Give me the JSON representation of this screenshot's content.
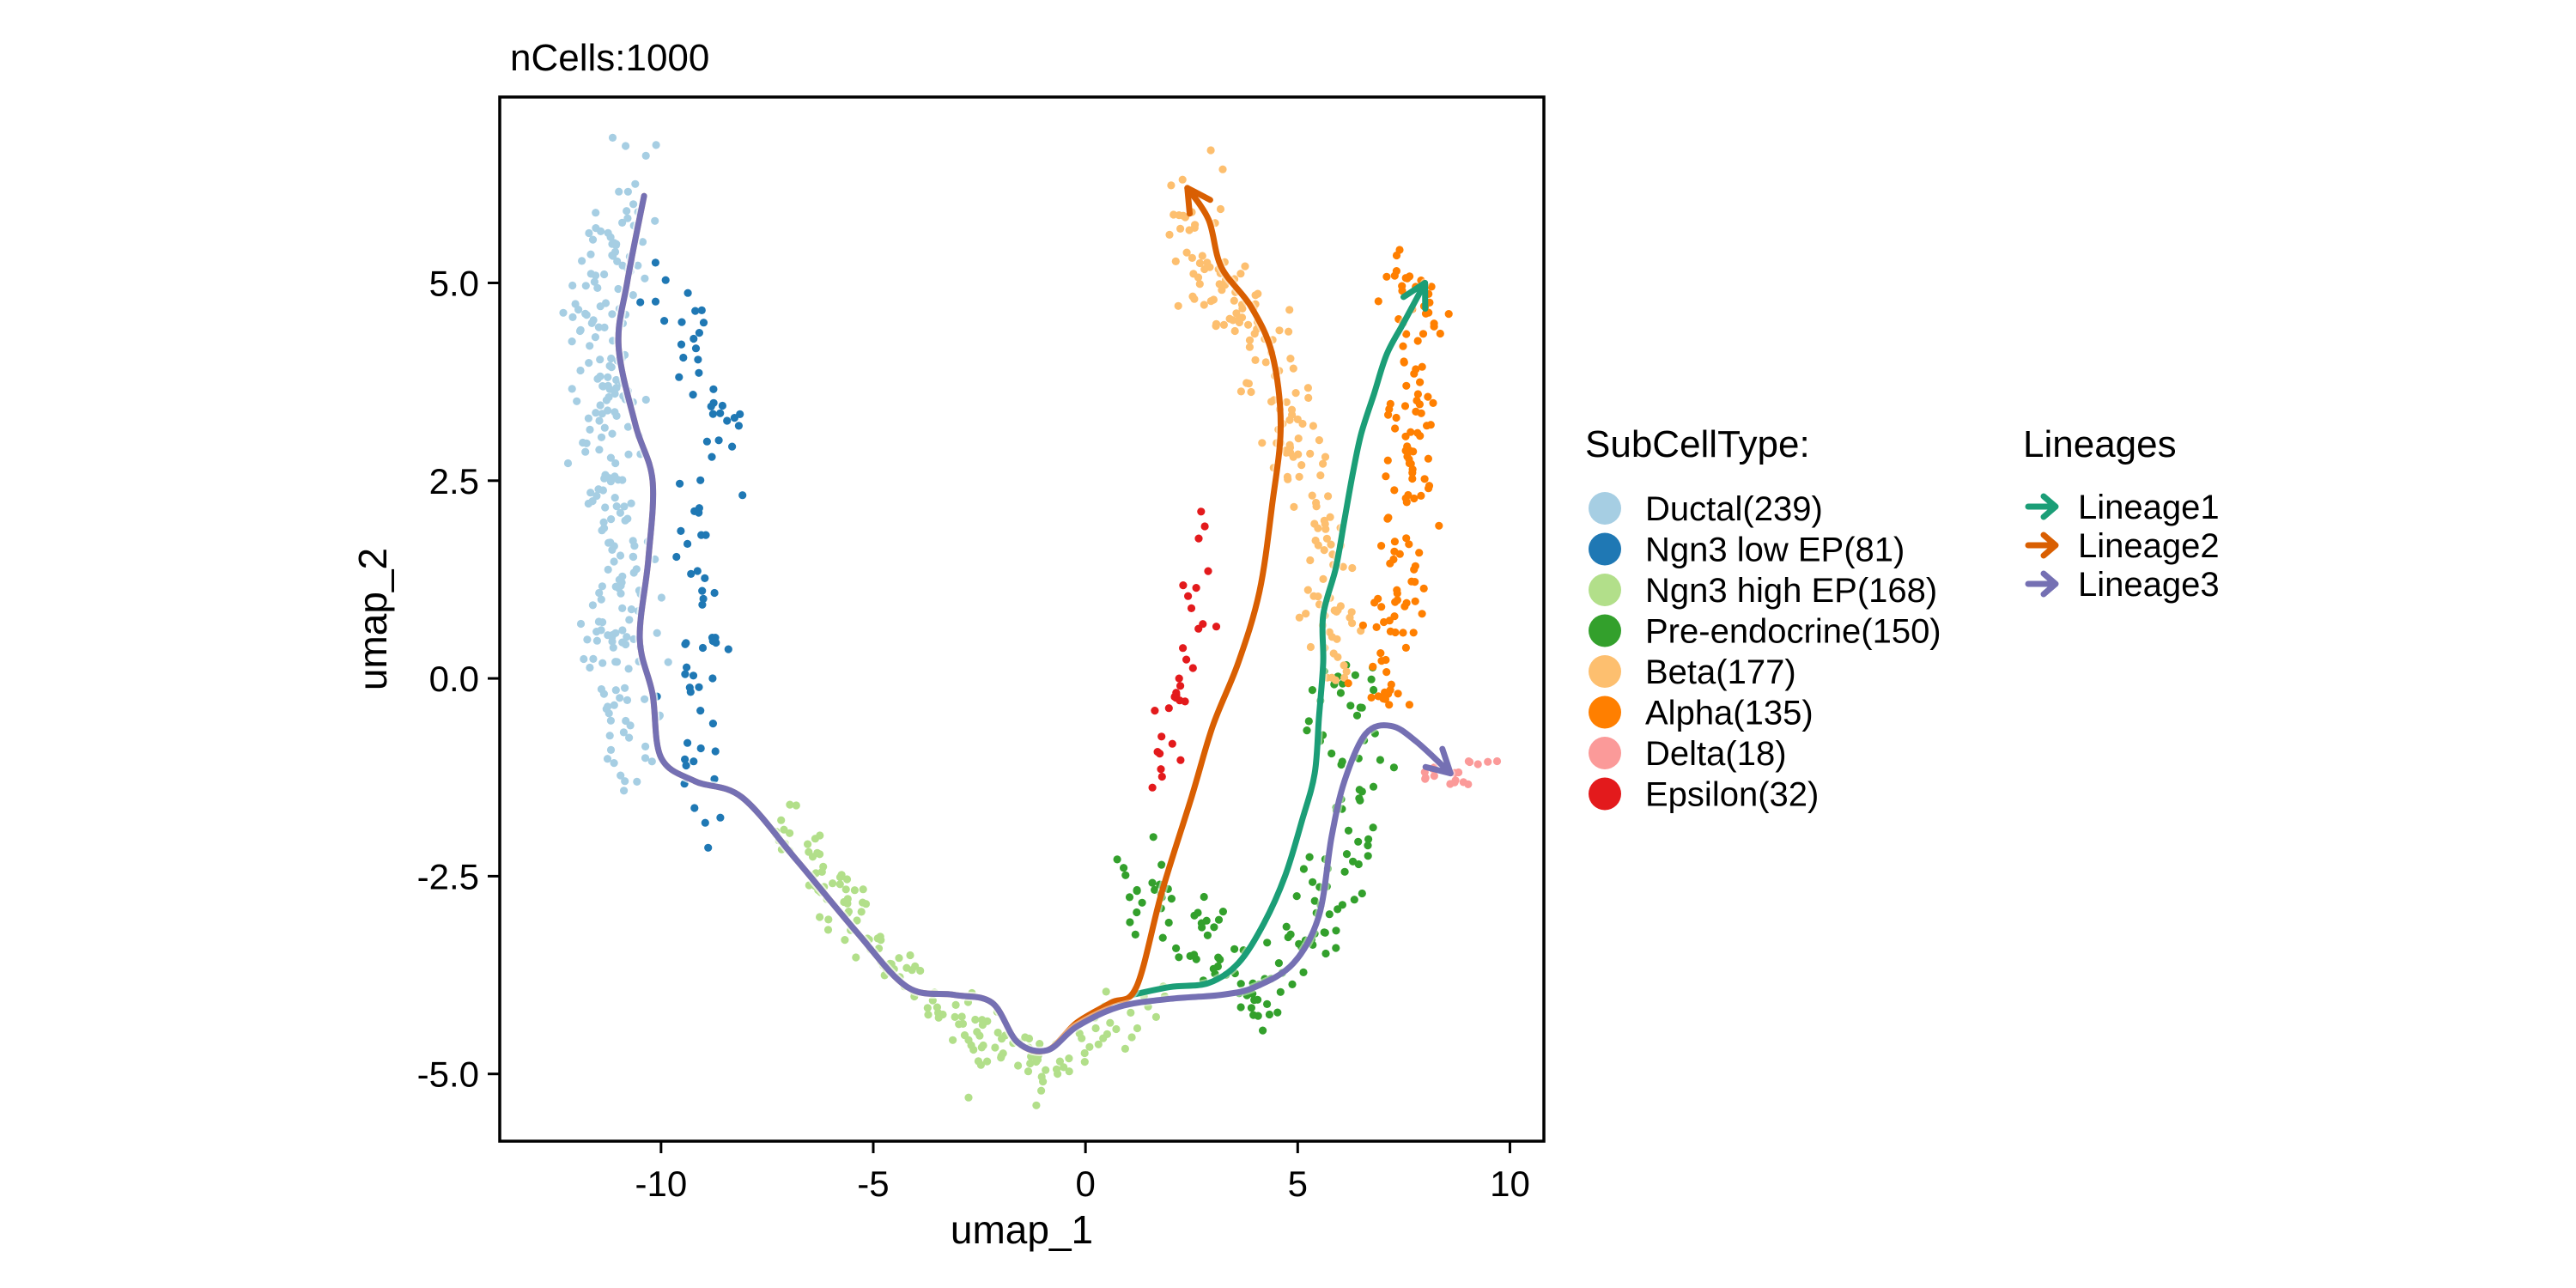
{
  "chart_data": {
    "type": "scatter",
    "title": "nCells:1000",
    "xlabel": "umap_1",
    "ylabel": "umap_2",
    "xlim": [
      -13.8,
      10.8
    ],
    "ylim": [
      -5.85,
      7.35
    ],
    "x_ticks": [
      -10,
      -5,
      0,
      5,
      10
    ],
    "x_tick_labels": [
      "-10",
      "-5",
      "0",
      "5",
      "10"
    ],
    "y_ticks": [
      -5,
      -2.5,
      0,
      2.5,
      5
    ],
    "y_tick_labels": [
      "-5.0",
      "-2.5",
      "0.0",
      "2.5",
      "5.0"
    ],
    "grid": false,
    "legend_placement": "right",
    "celltype_legend": {
      "title": "SubCellType:",
      "entries": [
        {
          "label": "Ductal(239)",
          "color": "#A6CEE3"
        },
        {
          "label": "Ngn3 low EP(81)",
          "color": "#1F78B4"
        },
        {
          "label": "Ngn3 high EP(168)",
          "color": "#B2DF8A"
        },
        {
          "label": "Pre-endocrine(150)",
          "color": "#33A02C"
        },
        {
          "label": "Beta(177)",
          "color": "#FDBF6F"
        },
        {
          "label": "Alpha(135)",
          "color": "#FF7F00"
        },
        {
          "label": "Delta(18)",
          "color": "#FB9A99"
        },
        {
          "label": "Epsilon(32)",
          "color": "#E31A1C"
        }
      ]
    },
    "lineage_legend": {
      "title": "Lineages",
      "entries": [
        {
          "label": "Lineage1",
          "color": "#1B9E77"
        },
        {
          "label": "Lineage2",
          "color": "#D95F02"
        },
        {
          "label": "Lineage3",
          "color": "#7570B3"
        }
      ]
    },
    "clusters": [
      {
        "name": "Ductal(239)",
        "color": "#A6CEE3",
        "count": 239,
        "path": [
          [
            -10.5,
            6.2
          ],
          [
            -11.3,
            5.2
          ],
          [
            -11.7,
            4.5
          ],
          [
            -11.2,
            3.6
          ],
          [
            -11.3,
            2.4
          ],
          [
            -10.9,
            1.2
          ],
          [
            -11.4,
            0.2
          ],
          [
            -10.6,
            -0.8
          ],
          [
            -10.5,
            -1.5
          ]
        ],
        "spread": 0.55
      },
      {
        "name": "Ngn3 low EP(81)",
        "color": "#1F78B4",
        "count": 81,
        "path": [
          [
            -9.8,
            5.0
          ],
          [
            -9.0,
            4.3
          ],
          [
            -8.5,
            3.3
          ],
          [
            -9.2,
            2.0
          ],
          [
            -8.9,
            0.8
          ],
          [
            -9.3,
            -0.5
          ],
          [
            -9.0,
            -1.6
          ],
          [
            -8.7,
            -2.0
          ]
        ],
        "spread": 0.45
      },
      {
        "name": "Ngn3 high EP(168)",
        "color": "#B2DF8A",
        "count": 168,
        "path": [
          [
            -7.3,
            -1.8
          ],
          [
            -5.8,
            -2.8
          ],
          [
            -4.5,
            -3.6
          ],
          [
            -3.2,
            -4.2
          ],
          [
            -2.2,
            -4.6
          ],
          [
            -1.0,
            -4.95
          ],
          [
            0.2,
            -4.5
          ],
          [
            1.5,
            -4.2
          ]
        ],
        "spread": 0.38
      },
      {
        "name": "Pre-endocrine(150)",
        "color": "#33A02C",
        "count": 150,
        "path": [
          [
            1.2,
            -2.6
          ],
          [
            2.8,
            -3.2
          ],
          [
            4.2,
            -4.3
          ],
          [
            5.3,
            -3.4
          ],
          [
            6.0,
            -2.2
          ],
          [
            6.5,
            -1.2
          ],
          [
            6.3,
            0.0
          ],
          [
            5.5,
            -0.5
          ]
        ],
        "spread": 0.45
      },
      {
        "name": "Beta(177)",
        "color": "#FDBF6F",
        "count": 177,
        "path": [
          [
            2.4,
            6.0
          ],
          [
            2.8,
            5.0
          ],
          [
            3.9,
            4.6
          ],
          [
            4.6,
            3.8
          ],
          [
            5.2,
            2.6
          ],
          [
            5.6,
            1.6
          ],
          [
            5.8,
            0.5
          ],
          [
            5.8,
            -0.1
          ]
        ],
        "spread": 0.45
      },
      {
        "name": "Alpha(135)",
        "color": "#FF7F00",
        "count": 135,
        "path": [
          [
            7.3,
            5.1
          ],
          [
            8.1,
            4.6
          ],
          [
            7.6,
            3.4
          ],
          [
            7.9,
            2.4
          ],
          [
            7.4,
            1.4
          ],
          [
            7.0,
            0.3
          ],
          [
            7.2,
            -0.5
          ]
        ],
        "spread": 0.42
      },
      {
        "name": "Delta(18)",
        "color": "#FB9A99",
        "count": 18,
        "path": [
          [
            7.8,
            -1.2
          ],
          [
            8.6,
            -1.25
          ],
          [
            9.5,
            -1.05
          ]
        ],
        "spread": 0.12
      },
      {
        "name": "Epsilon(32)",
        "color": "#E31A1C",
        "count": 32,
        "path": [
          [
            3.1,
            2.1
          ],
          [
            2.5,
            1.2
          ],
          [
            2.8,
            0.6
          ],
          [
            2.2,
            -0.2
          ],
          [
            1.8,
            -0.8
          ],
          [
            1.6,
            -1.4
          ]
        ],
        "spread": 0.28
      }
    ],
    "lineages": [
      {
        "name": "Lineage1",
        "color": "#1B9E77",
        "points": [
          [
            1.1,
            -4.0
          ],
          [
            2.0,
            -3.9
          ],
          [
            2.9,
            -3.85
          ],
          [
            3.6,
            -3.6
          ],
          [
            4.2,
            -3.1
          ],
          [
            4.7,
            -2.5
          ],
          [
            5.1,
            -1.8
          ],
          [
            5.4,
            -1.2
          ],
          [
            5.5,
            -0.5
          ],
          [
            5.6,
            0.2
          ],
          [
            5.6,
            0.8
          ],
          [
            5.9,
            1.4
          ],
          [
            6.1,
            2.0
          ],
          [
            6.3,
            2.6
          ],
          [
            6.5,
            3.1
          ],
          [
            6.8,
            3.6
          ],
          [
            7.1,
            4.1
          ],
          [
            7.5,
            4.5
          ],
          [
            8.0,
            5.0
          ]
        ]
      },
      {
        "name": "Lineage2",
        "color": "#D95F02",
        "points": [
          [
            -10.4,
            6.1
          ],
          [
            -10.8,
            5.0
          ],
          [
            -11.0,
            4.2
          ],
          [
            -10.6,
            3.2
          ],
          [
            -10.2,
            2.5
          ],
          [
            -10.3,
            1.5
          ],
          [
            -10.5,
            0.5
          ],
          [
            -10.2,
            -0.2
          ],
          [
            -10.0,
            -1.0
          ],
          [
            -9.2,
            -1.3
          ],
          [
            -8.1,
            -1.5
          ],
          [
            -6.8,
            -2.3
          ],
          [
            -5.4,
            -3.2
          ],
          [
            -4.2,
            -3.9
          ],
          [
            -3.1,
            -4.0
          ],
          [
            -2.2,
            -4.1
          ],
          [
            -1.6,
            -4.6
          ],
          [
            -0.9,
            -4.7
          ],
          [
            -0.2,
            -4.35
          ],
          [
            0.6,
            -4.1
          ],
          [
            1.2,
            -3.9
          ],
          [
            1.8,
            -2.7
          ],
          [
            2.5,
            -1.5
          ],
          [
            3.0,
            -0.6
          ],
          [
            3.6,
            0.2
          ],
          [
            4.1,
            1.1
          ],
          [
            4.4,
            2.2
          ],
          [
            4.6,
            3.2
          ],
          [
            4.4,
            4.1
          ],
          [
            3.9,
            4.7
          ],
          [
            3.2,
            5.2
          ],
          [
            2.9,
            5.8
          ],
          [
            2.4,
            6.2
          ]
        ]
      },
      {
        "name": "Lineage3",
        "color": "#7570B3",
        "points": [
          [
            -10.4,
            6.1
          ],
          [
            -10.8,
            5.0
          ],
          [
            -11.0,
            4.2
          ],
          [
            -10.6,
            3.2
          ],
          [
            -10.2,
            2.5
          ],
          [
            -10.3,
            1.5
          ],
          [
            -10.5,
            0.5
          ],
          [
            -10.2,
            -0.2
          ],
          [
            -10.0,
            -1.0
          ],
          [
            -9.2,
            -1.3
          ],
          [
            -8.1,
            -1.5
          ],
          [
            -6.8,
            -2.3
          ],
          [
            -5.4,
            -3.2
          ],
          [
            -4.2,
            -3.9
          ],
          [
            -3.1,
            -4.0
          ],
          [
            -2.2,
            -4.1
          ],
          [
            -1.6,
            -4.6
          ],
          [
            -0.9,
            -4.7
          ],
          [
            -0.2,
            -4.4
          ],
          [
            0.8,
            -4.15
          ],
          [
            2.0,
            -4.05
          ],
          [
            3.2,
            -4.0
          ],
          [
            4.0,
            -3.9
          ],
          [
            4.9,
            -3.6
          ],
          [
            5.5,
            -3.0
          ],
          [
            5.8,
            -2.0
          ],
          [
            6.1,
            -1.3
          ],
          [
            6.6,
            -0.7
          ],
          [
            7.2,
            -0.6
          ],
          [
            7.8,
            -0.8
          ],
          [
            8.6,
            -1.2
          ]
        ]
      }
    ]
  }
}
